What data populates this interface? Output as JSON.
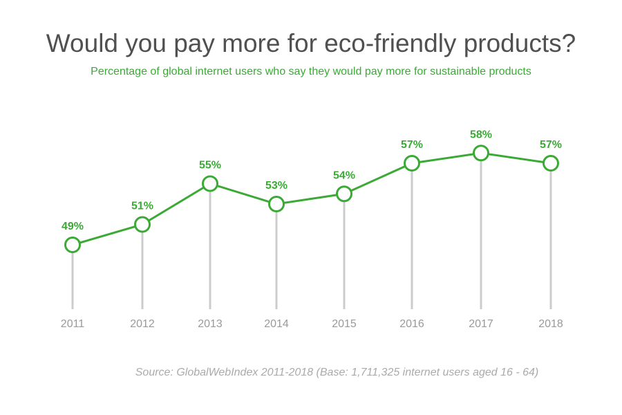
{
  "chart_data": {
    "type": "line",
    "title": "Would you pay more for eco-friendly products?",
    "subtitle": "Percentage of global internet users who say they would pay more for sustainable products",
    "categories": [
      "2011",
      "2012",
      "2013",
      "2014",
      "2015",
      "2016",
      "2017",
      "2018"
    ],
    "values": [
      49,
      51,
      55,
      53,
      54,
      57,
      58,
      57
    ],
    "data_labels": [
      "49%",
      "51%",
      "55%",
      "53%",
      "54%",
      "57%",
      "58%",
      "57%"
    ],
    "xlabel": "",
    "ylabel": "",
    "grid": false,
    "source": "Source: GlobalWebIndex 2011-2018 (Base: 1,711,325 internet users aged 16 - 64)",
    "colors": {
      "line": "#3aaa35",
      "stem": "#cccccc",
      "tick": "#999999"
    }
  }
}
